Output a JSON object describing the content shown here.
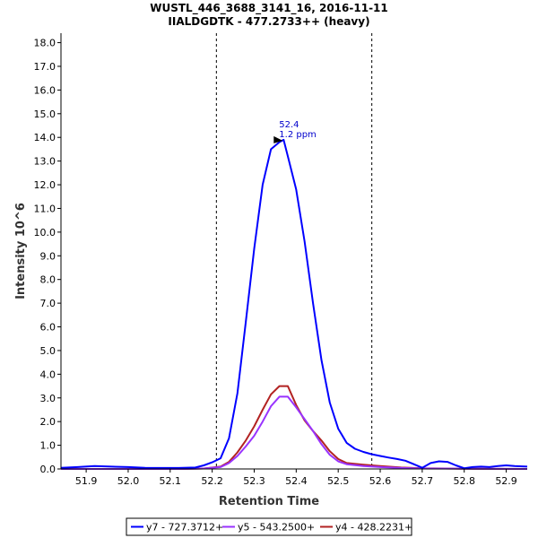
{
  "chart_data": {
    "type": "line",
    "title": "WUSTL_446_3688_3141_16, 2016-11-11",
    "subtitle": "IIALDGDTK - 477.2733++ (heavy)",
    "xlabel": "Retention Time",
    "ylabel": "Intensity 10^6",
    "xlim": [
      51.84,
      52.95
    ],
    "ylim": [
      0,
      18.4
    ],
    "xticks": [
      51.9,
      52.0,
      52.1,
      52.2,
      52.3,
      52.4,
      52.5,
      52.6,
      52.7,
      52.8,
      52.9
    ],
    "xtick_labels": [
      "51.9",
      "52.0",
      "52.1",
      "52.2",
      "52.3",
      "52.4",
      "52.5",
      "52.6",
      "52.7",
      "52.8",
      "52.9"
    ],
    "yticks": [
      0,
      1,
      2,
      3,
      4,
      5,
      6,
      7,
      8,
      9,
      10,
      11,
      12,
      13,
      14,
      15,
      16,
      17,
      18
    ],
    "ytick_labels": [
      "0.0",
      "1.0",
      "2.0",
      "3.0",
      "4.0",
      "5.0",
      "6.0",
      "7.0",
      "8.0",
      "9.0",
      "10.0",
      "11.0",
      "12.0",
      "13.0",
      "14.0",
      "15.0",
      "16.0",
      "17.0",
      "18.0"
    ],
    "grid": false,
    "legend_position": "bottom",
    "boundaries": [
      52.21,
      52.58
    ],
    "annotation": {
      "x": 52.37,
      "y": 13.9,
      "line1": "52.4",
      "line2": "1.2 ppm"
    },
    "series": [
      {
        "name": "y7 - 727.3712+",
        "color": "#0000ff",
        "x": [
          51.84,
          51.88,
          51.92,
          51.96,
          52.0,
          52.04,
          52.08,
          52.12,
          52.16,
          52.18,
          52.2,
          52.22,
          52.24,
          52.26,
          52.28,
          52.3,
          52.32,
          52.34,
          52.36,
          52.37,
          52.38,
          52.4,
          52.42,
          52.44,
          52.46,
          52.48,
          52.5,
          52.52,
          52.54,
          52.56,
          52.58,
          52.6,
          52.62,
          52.64,
          52.66,
          52.68,
          52.7,
          52.72,
          52.74,
          52.76,
          52.78,
          52.8,
          52.82,
          52.84,
          52.86,
          52.88,
          52.9,
          52.92,
          52.95
        ],
        "values": [
          0.05,
          0.08,
          0.12,
          0.1,
          0.08,
          0.05,
          0.04,
          0.04,
          0.06,
          0.15,
          0.28,
          0.45,
          1.3,
          3.2,
          6.2,
          9.3,
          12.0,
          13.5,
          13.8,
          13.9,
          13.2,
          11.8,
          9.6,
          7.0,
          4.6,
          2.8,
          1.7,
          1.1,
          0.85,
          0.72,
          0.62,
          0.55,
          0.48,
          0.42,
          0.35,
          0.2,
          0.05,
          0.25,
          0.32,
          0.3,
          0.15,
          0.03,
          0.08,
          0.1,
          0.08,
          0.12,
          0.15,
          0.12,
          0.1
        ]
      },
      {
        "name": "y5 - 543.2500+",
        "color": "#9933ff",
        "x": [
          51.84,
          52.0,
          52.12,
          52.18,
          52.22,
          52.24,
          52.26,
          52.28,
          52.3,
          52.32,
          52.34,
          52.36,
          52.38,
          52.4,
          52.42,
          52.44,
          52.46,
          52.48,
          52.5,
          52.52,
          52.56,
          52.6,
          52.65,
          52.7,
          52.8,
          52.95
        ],
        "values": [
          0.0,
          0.0,
          0.0,
          0.02,
          0.08,
          0.25,
          0.55,
          0.95,
          1.4,
          2.0,
          2.65,
          3.05,
          3.05,
          2.6,
          2.1,
          1.6,
          1.05,
          0.6,
          0.32,
          0.2,
          0.12,
          0.08,
          0.04,
          0.02,
          0.01,
          0.0
        ]
      },
      {
        "name": "y4 - 428.2231+",
        "color": "#b22222",
        "x": [
          51.84,
          52.0,
          52.12,
          52.18,
          52.22,
          52.24,
          52.26,
          52.28,
          52.3,
          52.32,
          52.34,
          52.36,
          52.38,
          52.4,
          52.42,
          52.44,
          52.46,
          52.48,
          52.5,
          52.52,
          52.56,
          52.6,
          52.65,
          52.7,
          52.8,
          52.95
        ],
        "values": [
          0.0,
          0.0,
          0.0,
          0.02,
          0.1,
          0.3,
          0.7,
          1.2,
          1.8,
          2.5,
          3.15,
          3.5,
          3.5,
          2.7,
          2.05,
          1.6,
          1.2,
          0.75,
          0.42,
          0.25,
          0.18,
          0.12,
          0.06,
          0.03,
          0.01,
          0.0
        ]
      }
    ]
  }
}
